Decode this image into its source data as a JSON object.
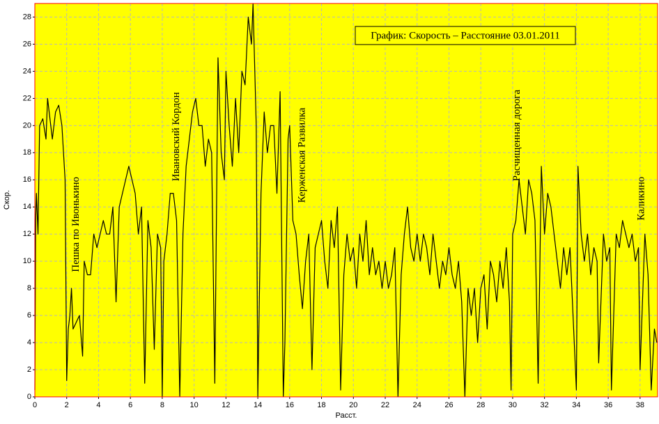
{
  "chart_data": {
    "type": "line",
    "title": "График: Скорость – Расстояние 03.01.2011",
    "xlabel": "Расст.",
    "ylabel": "Скор.",
    "color": "#000000",
    "background": "#ffff00",
    "border": "#ff0000",
    "grid": true,
    "xlim": [
      0,
      39.1
    ],
    "ylim": [
      0,
      29
    ],
    "xticks": [
      0,
      2,
      4,
      6,
      8,
      10,
      12,
      14,
      16,
      18,
      20,
      22,
      24,
      26,
      28,
      30,
      32,
      34,
      36,
      38
    ],
    "yticks": [
      0,
      2,
      4,
      6,
      8,
      10,
      12,
      14,
      16,
      18,
      20,
      22,
      24,
      26,
      28
    ],
    "annotations": [
      {
        "text": "Пешка по Ивонькино",
        "x": 2.6,
        "y": 9.2
      },
      {
        "text": "Ивановский Кордон",
        "x": 8.9,
        "y": 15.9
      },
      {
        "text": "Керженская Развилка",
        "x": 16.8,
        "y": 14.3
      },
      {
        "text": "Расчищенная дорога",
        "x": 30.3,
        "y": 15.9
      },
      {
        "text": "Каликино",
        "x": 38.1,
        "y": 13
      }
    ],
    "x": [
      0,
      0.05,
      0.1,
      0.2,
      0.3,
      0.5,
      0.7,
      0.8,
      1.0,
      1.1,
      1.3,
      1.5,
      1.7,
      1.9,
      2.0,
      2.1,
      2.2,
      2.3,
      2.4,
      2.6,
      2.8,
      3.0,
      3.1,
      3.3,
      3.5,
      3.7,
      3.9,
      4.1,
      4.3,
      4.5,
      4.7,
      4.9,
      5.1,
      5.3,
      5.5,
      5.7,
      5.9,
      6.1,
      6.3,
      6.5,
      6.7,
      6.9,
      7.1,
      7.3,
      7.5,
      7.7,
      7.9,
      8.0,
      8.1,
      8.3,
      8.5,
      8.7,
      8.9,
      9.1,
      9.3,
      9.5,
      9.7,
      9.9,
      10.1,
      10.3,
      10.5,
      10.7,
      10.9,
      11.1,
      11.3,
      11.5,
      11.7,
      11.9,
      12.0,
      12.2,
      12.4,
      12.6,
      12.8,
      13.0,
      13.2,
      13.4,
      13.6,
      13.7,
      13.9,
      14.0,
      14.2,
      14.4,
      14.6,
      14.8,
      15.0,
      15.2,
      15.4,
      15.6,
      15.7,
      15.9,
      16.0,
      16.2,
      16.4,
      16.6,
      16.8,
      17.0,
      17.2,
      17.4,
      17.6,
      17.8,
      18.0,
      18.2,
      18.4,
      18.6,
      18.8,
      19.0,
      19.2,
      19.4,
      19.6,
      19.8,
      20.0,
      20.2,
      20.4,
      20.6,
      20.8,
      21.0,
      21.2,
      21.4,
      21.6,
      21.8,
      22.0,
      22.2,
      22.4,
      22.6,
      22.8,
      23.0,
      23.2,
      23.4,
      23.6,
      23.8,
      24.0,
      24.2,
      24.4,
      24.6,
      24.8,
      25.0,
      25.2,
      25.4,
      25.6,
      25.8,
      26.0,
      26.2,
      26.4,
      26.6,
      26.8,
      27.0,
      27.2,
      27.4,
      27.6,
      27.8,
      28.0,
      28.2,
      28.4,
      28.6,
      28.8,
      29.0,
      29.2,
      29.4,
      29.6,
      29.8,
      29.9,
      30.0,
      30.2,
      30.4,
      30.6,
      30.8,
      31.0,
      31.2,
      31.4,
      31.6,
      31.8,
      32.0,
      32.2,
      32.4,
      32.6,
      32.8,
      33.0,
      33.2,
      33.4,
      33.6,
      34.0,
      34.1,
      34.3,
      34.5,
      34.7,
      34.9,
      35.1,
      35.3,
      35.4,
      35.7,
      35.9,
      36.1,
      36.2,
      36.5,
      36.7,
      36.9,
      37.1,
      37.3,
      37.5,
      37.7,
      37.9,
      38.0,
      38.3,
      38.5,
      38.7,
      38.9,
      39.05
    ],
    "values": [
      0.5,
      13,
      15,
      12,
      20,
      20.5,
      19,
      22,
      20,
      19,
      21,
      21.5,
      20,
      16,
      1.2,
      5,
      6,
      8,
      5,
      5.5,
      6,
      3,
      10,
      9,
      9,
      12,
      11,
      12,
      13,
      12,
      12,
      14,
      7,
      14,
      15,
      16,
      17,
      16,
      15,
      12,
      14,
      1,
      13,
      11,
      3.5,
      12,
      11,
      0,
      10,
      12,
      15,
      15,
      13,
      0,
      12,
      17,
      19,
      21,
      22,
      20,
      20,
      17,
      19,
      18,
      1,
      25,
      18,
      16,
      24,
      20,
      17,
      22,
      18,
      24,
      23,
      28,
      26,
      29,
      20,
      0,
      15,
      21,
      18,
      20,
      20,
      15,
      22.5,
      0,
      4,
      19,
      20,
      13,
      12,
      9,
      6.5,
      10,
      12,
      2,
      11,
      12,
      13,
      10,
      8,
      13,
      11,
      14,
      0.5,
      9,
      12,
      10,
      11,
      8,
      12,
      10,
      13,
      9,
      11,
      9,
      10,
      8,
      10,
      8,
      9,
      11,
      0,
      9,
      12,
      14,
      11,
      10,
      12,
      10,
      12,
      11,
      9,
      12,
      10,
      8,
      10,
      9,
      11,
      9,
      8,
      10,
      7,
      0,
      8,
      6,
      8,
      4,
      8,
      9,
      5,
      10,
      9,
      7,
      10,
      8,
      11,
      7,
      0.5,
      12,
      13,
      16,
      14,
      12,
      16,
      15,
      13,
      1,
      17,
      12,
      15,
      14,
      12,
      10,
      8,
      11,
      9,
      11,
      0.5,
      17,
      12,
      10,
      12,
      9,
      11,
      10,
      2.5,
      12,
      10,
      11,
      0.5,
      12,
      11,
      13,
      12,
      11,
      12,
      10,
      11,
      2,
      12,
      9,
      0.5,
      5,
      4
    ]
  }
}
